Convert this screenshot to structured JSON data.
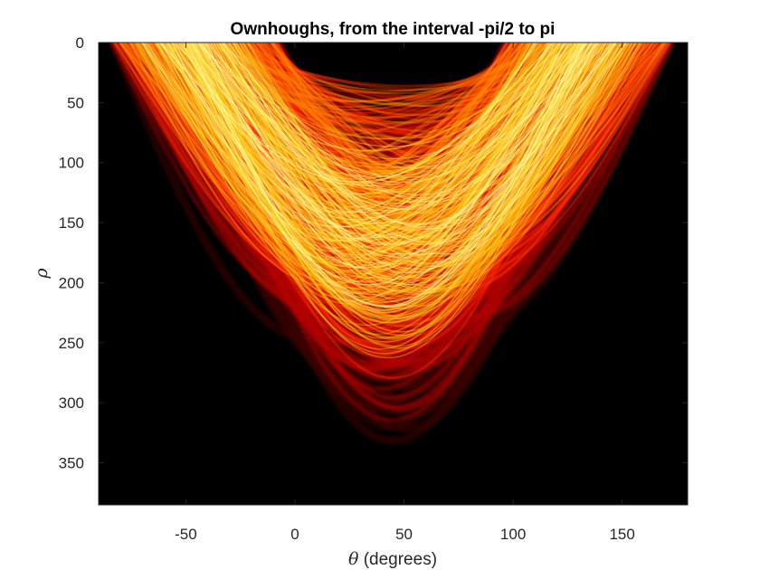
{
  "chart_data": {
    "type": "heatmap",
    "title": "Ownhoughs, from the interval -pi/2 to pi",
    "xlabel": {
      "symbol": "θ",
      "text": " (degrees)"
    },
    "ylabel": "ρ",
    "xlim": [
      -90,
      180
    ],
    "ylim": [
      0,
      385
    ],
    "y_reversed": true,
    "xticks": [
      -50,
      0,
      50,
      100,
      150
    ],
    "yticks": [
      0,
      50,
      100,
      150,
      200,
      250,
      300,
      350
    ],
    "colormap": "hot",
    "background": "#000000",
    "colors": [
      "#000000",
      "#3c0000",
      "#b30000",
      "#ff2a00",
      "#ff8c00",
      "#ffd21a",
      "#ffffa0"
    ],
    "grid": false,
    "legend": "none"
  }
}
